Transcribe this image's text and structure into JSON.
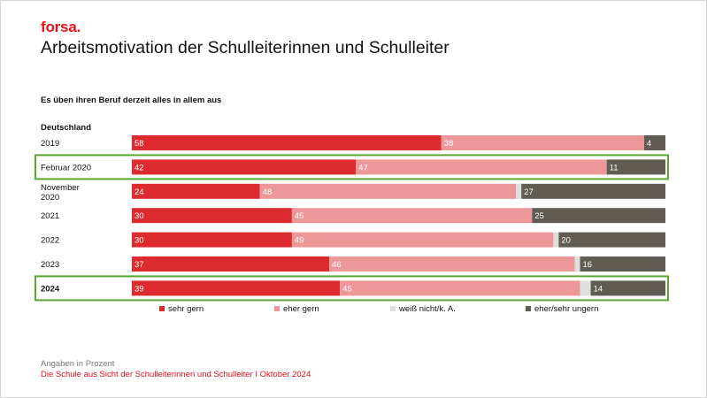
{
  "header": {
    "logo": "forsa.",
    "title": "Arbeitsmotivation der Schulleiterinnen und Schulleiter",
    "subtitle": "Es üben ihren Beruf derzeit alles in allem aus"
  },
  "footer": {
    "note": "Angaben in Prozent",
    "source": "Die Schule aus Sicht der Schulleiterinnen und Schulleiter I Oktober 2024"
  },
  "chart_data": {
    "type": "bar",
    "orientation": "horizontal",
    "stacked": true,
    "group_label": "Deutschland",
    "categories": [
      "2019",
      "Februar 2020",
      "November 2020",
      "2021",
      "2022",
      "2023",
      "2024"
    ],
    "category_lines": [
      [
        "2019"
      ],
      [
        "Februar 2020"
      ],
      [
        "November",
        "2020"
      ],
      [
        "2021"
      ],
      [
        "2022"
      ],
      [
        "2023"
      ],
      [
        "2024"
      ]
    ],
    "bold_categories": [
      "2024"
    ],
    "highlighted_categories": [
      "Februar 2020",
      "2024"
    ],
    "highlight_color": "#5aa832",
    "xlim": [
      0,
      100
    ],
    "series": [
      {
        "name": "sehr gern",
        "color": "#dc2a2e",
        "values": [
          58,
          42,
          24,
          30,
          30,
          37,
          39
        ],
        "labels": [
          "58",
          "42",
          "24",
          "30",
          "30",
          "37",
          "39"
        ]
      },
      {
        "name": "eher gern",
        "color": "#ed9799",
        "values": [
          38,
          47,
          48,
          45,
          49,
          46,
          45
        ],
        "labels": [
          "38",
          "47",
          "48",
          "45",
          "49",
          "46",
          "45"
        ]
      },
      {
        "name": "weiß nicht/k. A.",
        "color": "#dedede",
        "values": [
          0,
          0,
          1,
          0,
          1,
          1,
          2
        ],
        "labels": [
          "",
          "",
          "",
          "",
          "",
          "",
          ""
        ]
      },
      {
        "name": "eher/sehr ungern",
        "color": "#615c53",
        "values": [
          4,
          11,
          27,
          25,
          20,
          16,
          14
        ],
        "labels": [
          "4",
          "11",
          "27",
          "25",
          "20",
          "16",
          "14"
        ]
      }
    ]
  }
}
